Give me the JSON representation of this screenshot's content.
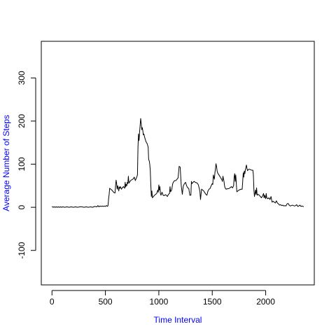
{
  "chart_data": {
    "type": "line",
    "xlabel": "Time Interval",
    "ylabel": "Average Number of Steps",
    "xlim": [
      -100,
      2455
    ],
    "ylim": [
      -180,
      385
    ],
    "xticks": [
      0,
      500,
      1000,
      1500,
      2000
    ],
    "yticks": [
      -100,
      0,
      100,
      200,
      300
    ],
    "grid": false,
    "colors": {
      "line": "#000000",
      "axis_title": "#0000ff"
    },
    "series": [
      {
        "points": [
          [
            0,
            2
          ],
          [
            10,
            0
          ],
          [
            20,
            1
          ],
          [
            30,
            0
          ],
          [
            40,
            1
          ],
          [
            50,
            0
          ],
          [
            60,
            1
          ],
          [
            70,
            0
          ],
          [
            80,
            1
          ],
          [
            90,
            0
          ],
          [
            100,
            1
          ],
          [
            120,
            0
          ],
          [
            140,
            1
          ],
          [
            160,
            0
          ],
          [
            180,
            1
          ],
          [
            200,
            0
          ],
          [
            220,
            1
          ],
          [
            240,
            0
          ],
          [
            260,
            1
          ],
          [
            280,
            1
          ],
          [
            300,
            0
          ],
          [
            320,
            1
          ],
          [
            340,
            0
          ],
          [
            360,
            1
          ],
          [
            380,
            0
          ],
          [
            400,
            2
          ],
          [
            420,
            1
          ],
          [
            430,
            4
          ],
          [
            440,
            1
          ],
          [
            450,
            3
          ],
          [
            460,
            2
          ],
          [
            470,
            3
          ],
          [
            480,
            2
          ],
          [
            490,
            3
          ],
          [
            500,
            2
          ],
          [
            510,
            4
          ],
          [
            520,
            2
          ],
          [
            525,
            5
          ],
          [
            530,
            20
          ],
          [
            535,
            30
          ],
          [
            540,
            44
          ],
          [
            550,
            42
          ],
          [
            560,
            40
          ],
          [
            570,
            37
          ],
          [
            580,
            34
          ],
          [
            590,
            33
          ],
          [
            595,
            50
          ],
          [
            600,
            63
          ],
          [
            605,
            55
          ],
          [
            610,
            42
          ],
          [
            615,
            50
          ],
          [
            620,
            45
          ],
          [
            625,
            38
          ],
          [
            630,
            47
          ],
          [
            635,
            44
          ],
          [
            640,
            48
          ],
          [
            650,
            42
          ],
          [
            660,
            46
          ],
          [
            670,
            48
          ],
          [
            680,
            44
          ],
          [
            685,
            58
          ],
          [
            690,
            47
          ],
          [
            695,
            53
          ],
          [
            700,
            50
          ],
          [
            705,
            58
          ],
          [
            710,
            55
          ],
          [
            715,
            72
          ],
          [
            720,
            56
          ],
          [
            730,
            60
          ],
          [
            740,
            63
          ],
          [
            750,
            64
          ],
          [
            760,
            66
          ],
          [
            770,
            70
          ],
          [
            780,
            62
          ],
          [
            790,
            68
          ],
          [
            800,
            75
          ],
          [
            805,
            140
          ],
          [
            810,
            170
          ],
          [
            815,
            155
          ],
          [
            820,
            175
          ],
          [
            825,
            190
          ],
          [
            830,
            206
          ],
          [
            835,
            195
          ],
          [
            840,
            180
          ],
          [
            845,
            185
          ],
          [
            850,
            178
          ],
          [
            855,
            168
          ],
          [
            860,
            170
          ],
          [
            870,
            160
          ],
          [
            880,
            152
          ],
          [
            890,
            148
          ],
          [
            900,
            140
          ],
          [
            905,
            110
          ],
          [
            910,
            108
          ],
          [
            915,
            100
          ],
          [
            920,
            85
          ],
          [
            925,
            52
          ],
          [
            930,
            25
          ],
          [
            935,
            38
          ],
          [
            940,
            22
          ],
          [
            950,
            25
          ],
          [
            960,
            28
          ],
          [
            970,
            30
          ],
          [
            980,
            32
          ],
          [
            990,
            40
          ],
          [
            995,
            35
          ],
          [
            1000,
            52
          ],
          [
            1005,
            40
          ],
          [
            1010,
            48
          ],
          [
            1015,
            32
          ],
          [
            1020,
            28
          ],
          [
            1030,
            35
          ],
          [
            1040,
            28
          ],
          [
            1050,
            27
          ],
          [
            1060,
            29
          ],
          [
            1070,
            28
          ],
          [
            1080,
            25
          ],
          [
            1090,
            30
          ],
          [
            1100,
            32
          ],
          [
            1105,
            48
          ],
          [
            1110,
            36
          ],
          [
            1120,
            40
          ],
          [
            1130,
            55
          ],
          [
            1140,
            60
          ],
          [
            1150,
            62
          ],
          [
            1160,
            62
          ],
          [
            1170,
            65
          ],
          [
            1180,
            68
          ],
          [
            1190,
            95
          ],
          [
            1200,
            93
          ],
          [
            1205,
            70
          ],
          [
            1210,
            50
          ],
          [
            1215,
            40
          ],
          [
            1220,
            30
          ],
          [
            1225,
            42
          ],
          [
            1230,
            50
          ],
          [
            1240,
            55
          ],
          [
            1250,
            58
          ],
          [
            1260,
            50
          ],
          [
            1270,
            45
          ],
          [
            1280,
            44
          ],
          [
            1290,
            28
          ],
          [
            1300,
            28
          ],
          [
            1305,
            60
          ],
          [
            1310,
            55
          ],
          [
            1320,
            58
          ],
          [
            1330,
            60
          ],
          [
            1340,
            58
          ],
          [
            1350,
            57
          ],
          [
            1360,
            56
          ],
          [
            1370,
            52
          ],
          [
            1380,
            42
          ],
          [
            1385,
            35
          ],
          [
            1390,
            18
          ],
          [
            1395,
            30
          ],
          [
            1400,
            42
          ],
          [
            1410,
            40
          ],
          [
            1420,
            38
          ],
          [
            1430,
            34
          ],
          [
            1440,
            30
          ],
          [
            1450,
            28
          ],
          [
            1460,
            38
          ],
          [
            1470,
            42
          ],
          [
            1480,
            44
          ],
          [
            1490,
            50
          ],
          [
            1500,
            55
          ],
          [
            1505,
            53
          ],
          [
            1510,
            75
          ],
          [
            1515,
            70
          ],
          [
            1520,
            65
          ],
          [
            1525,
            80
          ],
          [
            1530,
            90
          ],
          [
            1535,
            101
          ],
          [
            1540,
            95
          ],
          [
            1545,
            85
          ],
          [
            1550,
            80
          ],
          [
            1560,
            76
          ],
          [
            1570,
            72
          ],
          [
            1580,
            68
          ],
          [
            1590,
            64
          ],
          [
            1595,
            60
          ],
          [
            1600,
            72
          ],
          [
            1605,
            66
          ],
          [
            1610,
            60
          ],
          [
            1615,
            50
          ],
          [
            1620,
            45
          ],
          [
            1630,
            42
          ],
          [
            1640,
            43
          ],
          [
            1650,
            43
          ],
          [
            1660,
            44
          ],
          [
            1670,
            46
          ],
          [
            1680,
            48
          ],
          [
            1690,
            45
          ],
          [
            1700,
            50
          ],
          [
            1705,
            70
          ],
          [
            1710,
            78
          ],
          [
            1715,
            60
          ],
          [
            1720,
            75
          ],
          [
            1730,
            36
          ],
          [
            1740,
            38
          ],
          [
            1750,
            40
          ],
          [
            1760,
            41
          ],
          [
            1770,
            42
          ],
          [
            1780,
            42
          ],
          [
            1785,
            60
          ],
          [
            1790,
            80
          ],
          [
            1795,
            70
          ],
          [
            1800,
            84
          ],
          [
            1805,
            78
          ],
          [
            1810,
            87
          ],
          [
            1820,
            98
          ],
          [
            1825,
            90
          ],
          [
            1830,
            85
          ],
          [
            1840,
            88
          ],
          [
            1850,
            88
          ],
          [
            1860,
            87
          ],
          [
            1870,
            86
          ],
          [
            1880,
            86
          ],
          [
            1885,
            75
          ],
          [
            1890,
            40
          ],
          [
            1895,
            25
          ],
          [
            1900,
            32
          ],
          [
            1905,
            40
          ],
          [
            1910,
            30
          ],
          [
            1915,
            45
          ],
          [
            1920,
            28
          ],
          [
            1930,
            30
          ],
          [
            1940,
            28
          ],
          [
            1950,
            25
          ],
          [
            1960,
            22
          ],
          [
            1970,
            26
          ],
          [
            1980,
            32
          ],
          [
            1985,
            22
          ],
          [
            1990,
            28
          ],
          [
            2000,
            20
          ],
          [
            2005,
            32
          ],
          [
            2010,
            22
          ],
          [
            2020,
            20
          ],
          [
            2030,
            22
          ],
          [
            2040,
            18
          ],
          [
            2050,
            25
          ],
          [
            2055,
            18
          ],
          [
            2060,
            12
          ],
          [
            2070,
            14
          ],
          [
            2080,
            12
          ],
          [
            2090,
            10
          ],
          [
            2100,
            15
          ],
          [
            2110,
            10
          ],
          [
            2120,
            8
          ],
          [
            2130,
            5
          ],
          [
            2140,
            6
          ],
          [
            2150,
            4
          ],
          [
            2160,
            5
          ],
          [
            2170,
            3
          ],
          [
            2180,
            4
          ],
          [
            2190,
            3
          ],
          [
            2200,
            8
          ],
          [
            2210,
            9
          ],
          [
            2220,
            5
          ],
          [
            2230,
            3
          ],
          [
            2240,
            4
          ],
          [
            2250,
            5
          ],
          [
            2260,
            4
          ],
          [
            2270,
            3
          ],
          [
            2280,
            4
          ],
          [
            2290,
            6
          ],
          [
            2300,
            2
          ],
          [
            2310,
            3
          ],
          [
            2320,
            5
          ],
          [
            2330,
            2
          ],
          [
            2340,
            3
          ],
          [
            2350,
            2
          ],
          [
            2355,
            1
          ]
        ]
      }
    ]
  }
}
